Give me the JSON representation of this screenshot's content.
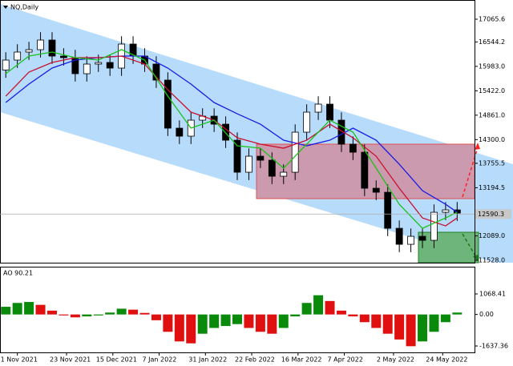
{
  "chart_data": [
    {
      "type": "candlestick",
      "title": "NQ,Daily",
      "x": [
        -4,
        0,
        4,
        8,
        12,
        16,
        20,
        24,
        28,
        32,
        36,
        40,
        44,
        48,
        52,
        56,
        60,
        64,
        68,
        72,
        76,
        80,
        84,
        88,
        92,
        96,
        100,
        104,
        108,
        112,
        116,
        120,
        124,
        128,
        132,
        136,
        140,
        144,
        148,
        152
      ],
      "open": [
        15900,
        16127,
        16311,
        16366,
        16587,
        16219,
        16182,
        15814,
        16035,
        16072,
        15943,
        16495,
        16219,
        16035,
        15667,
        14563,
        14379,
        14747,
        14839,
        14655,
        14287,
        13551,
        13919,
        13827,
        13459,
        13551,
        14471,
        14931,
        15115,
        14747,
        14195,
        14011,
        13183,
        13091,
        12263,
        11895,
        12079,
        11987,
        12631,
        12686
      ],
      "high": [
        16307,
        16491,
        16546,
        16767,
        16767,
        16399,
        16362,
        16215,
        16252,
        16252,
        16675,
        16675,
        16399,
        16215,
        15847,
        14743,
        14927,
        15019,
        15019,
        14835,
        14467,
        14099,
        14099,
        14007,
        13731,
        14651,
        15111,
        15295,
        15295,
        14927,
        14375,
        14191,
        13363,
        13271,
        12443,
        12259,
        12259,
        12811,
        12866,
        12866
      ],
      "low": [
        15720,
        15947,
        16131,
        16186,
        16039,
        16002,
        15634,
        15634,
        15855,
        15763,
        15763,
        16039,
        15855,
        15487,
        14383,
        14199,
        14199,
        14567,
        14475,
        14107,
        13371,
        13371,
        13647,
        13279,
        13279,
        13371,
        14291,
        14751,
        14567,
        14015,
        13831,
        13003,
        12911,
        12083,
        11715,
        11715,
        11807,
        11807,
        12451,
        12432
      ],
      "close": [
        16127,
        16311,
        16366,
        16587,
        16219,
        16182,
        15814,
        16035,
        16072,
        15943,
        16495,
        16219,
        16035,
        15667,
        14563,
        14379,
        14747,
        14839,
        14655,
        14287,
        13551,
        13919,
        13827,
        13459,
        13551,
        14471,
        14931,
        15115,
        14747,
        14195,
        14011,
        13183,
        13091,
        12263,
        11895,
        12079,
        11987,
        12631,
        12686,
        12612
      ],
      "series": [
        {
          "color": "#1a1ae6",
          "x": [
            -4,
            4,
            12,
            20,
            28,
            36,
            44,
            52,
            60,
            68,
            76,
            84,
            92,
            100,
            108,
            116,
            124,
            132,
            140,
            148,
            152
          ],
          "values": [
            15152,
            15575,
            15943,
            16127,
            16182,
            16219,
            16219,
            15943,
            15575,
            15152,
            14894,
            14655,
            14287,
            14158,
            14287,
            14563,
            14287,
            13735,
            13128,
            12815,
            12631
          ]
        },
        {
          "color": "#c8102e",
          "x": [
            -4,
            4,
            12,
            20,
            28,
            36,
            44,
            52,
            60,
            68,
            76,
            84,
            92,
            100,
            108,
            116,
            124,
            132,
            140,
            148,
            152
          ],
          "values": [
            15299,
            15851,
            16072,
            16182,
            16182,
            16219,
            16035,
            15446,
            14931,
            14747,
            14342,
            14195,
            14103,
            14287,
            14655,
            14342,
            13919,
            13183,
            12502,
            12318,
            12502
          ]
        },
        {
          "color": "#19c219",
          "x": [
            -4,
            4,
            12,
            20,
            28,
            36,
            44,
            52,
            60,
            68,
            76,
            84,
            92,
            100,
            108,
            116,
            124,
            132,
            140,
            148,
            152
          ],
          "values": [
            15814,
            16219,
            16311,
            16182,
            16127,
            16366,
            16127,
            15299,
            14563,
            14747,
            14158,
            14103,
            13643,
            14195,
            14747,
            14471,
            13643,
            12815,
            12263,
            12502,
            12631
          ]
        }
      ],
      "last_price": 12590.3,
      "xlim": [
        -6,
        158
      ],
      "ylim": [
        11473,
        17507
      ],
      "yticks": [
        17065.6,
        16544.2,
        {
          "value": 15983,
          "label": "15983.0"
        },
        {
          "value": 15422,
          "label": "15422.0"
        },
        {
          "value": 14861,
          "label": "14861.0"
        },
        {
          "value": 14300,
          "label": "14300.0"
        },
        13755.5,
        13194.5,
        {
          "value": 12089,
          "label": "12089.0"
        },
        {
          "value": 11528,
          "label": "11528.0"
        }
      ],
      "xticks": [
        {
          "value": 0,
          "label": "1 Nov 2021"
        },
        {
          "value": 17,
          "label": "23 Nov 2021"
        },
        {
          "value": 33,
          "label": "15 Dec 2021"
        },
        {
          "value": 49,
          "label": "7 Jan 2022"
        },
        {
          "value": 65,
          "label": "31 Jan 2022"
        },
        {
          "value": 81,
          "label": "22 Feb 2022"
        },
        {
          "value": 97,
          "label": "16 Mar 2022"
        },
        {
          "value": 113,
          "label": "7 Apr 2022"
        },
        {
          "value": 130,
          "label": "2 May 2022"
        },
        {
          "value": 147,
          "label": "24 May 2022"
        }
      ]
    },
    {
      "type": "bar",
      "title": "AO 90.21",
      "x": [
        -4,
        0,
        4,
        8,
        12,
        16,
        20,
        24,
        28,
        32,
        36,
        40,
        44,
        48,
        52,
        56,
        60,
        64,
        68,
        72,
        76,
        80,
        84,
        88,
        92,
        96,
        100,
        104,
        108,
        112,
        116,
        120,
        124,
        128,
        132,
        136,
        140,
        144,
        148,
        152
      ],
      "values": [
        400,
        600,
        650,
        500,
        200,
        -50,
        -150,
        -100,
        -50,
        100,
        300,
        250,
        80,
        -300,
        -900,
        -1400,
        -1500,
        -1000,
        -700,
        -600,
        -500,
        -700,
        -900,
        -1000,
        -700,
        -100,
        600,
        1000,
        700,
        200,
        -100,
        -400,
        -700,
        -1000,
        -1300,
        -1650,
        -1400,
        -900,
        -400,
        100
      ],
      "up_color": "#0a8a0a",
      "down_color": "#e01010",
      "ylim": [
        -1970,
        2483
      ],
      "yticks": [
        1068.41,
        {
          "value": 0,
          "label": "0.00"
        },
        -1637.36
      ]
    }
  ]
}
